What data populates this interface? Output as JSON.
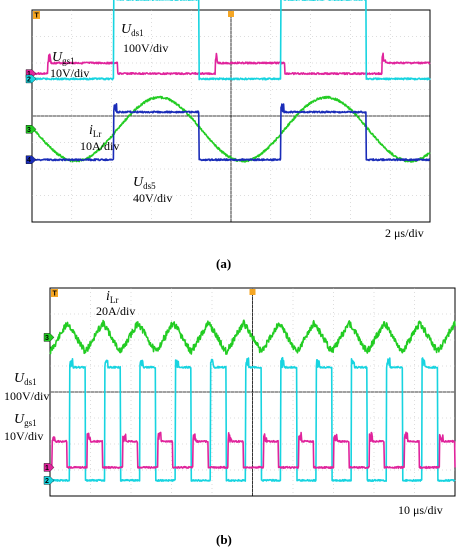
{
  "chart_data": [
    {
      "type": "line",
      "caption": "(a)",
      "time_scale": "2 μs/div",
      "divisions": {
        "x": 10,
        "y": 8
      },
      "channel_markers": [
        "T",
        "1",
        "2",
        "3",
        "4"
      ],
      "trigger_marker_color": "#f5a623",
      "series": [
        {
          "name": "U_gs1",
          "scale": "10V/div",
          "color": "#e0249c",
          "marker": "1",
          "label_main": "U",
          "label_sub": "gs1",
          "label_scale": "10V/div",
          "period_div": 4.2,
          "high_start_div": 0.4,
          "high_end_div": 2.15,
          "low_level_div": 2.4,
          "high_level_div": 2.0
        },
        {
          "name": "U_ds1",
          "scale": "100V/div",
          "color": "#17d4e0",
          "marker": "2",
          "label_main": "U",
          "label_sub": "ds1",
          "label_scale": "100V/div",
          "period_div": 4.2,
          "high_start_div": 2.05,
          "high_end_div": 4.2,
          "low_level_div": 2.6,
          "high_level_div": -0.4
        },
        {
          "name": "i_Lr",
          "scale": "10A/div",
          "color": "#22cc22",
          "marker": "3",
          "label_main": "i",
          "label_sub": "Lr",
          "label_scale": "10A/div",
          "period_div": 4.2,
          "center_div": 4.5,
          "amplitude_div": 1.2,
          "phase_div": 3.1
        },
        {
          "name": "U_ds5",
          "scale": "40V/div",
          "color": "#1a2cb8",
          "marker": "4",
          "label_main": "U",
          "label_sub": "ds5",
          "label_scale": "40V/div",
          "period_div": 4.2,
          "high_start_div": 2.05,
          "high_end_div": 4.2,
          "low_level_div": 5.65,
          "high_level_div": 3.85
        }
      ]
    },
    {
      "type": "line",
      "caption": "(b)",
      "time_scale": "10 μs/div",
      "divisions": {
        "x": 10,
        "y": 8
      },
      "channel_markers": [
        "T",
        "3",
        "1",
        "2"
      ],
      "trigger_marker_color": "#f5a623",
      "series": [
        {
          "name": "i_Lr",
          "scale": "20A/div",
          "color": "#22cc22",
          "marker": "3",
          "label_main": "i",
          "label_sub": "Lr",
          "label_scale": "20A/div",
          "period_div": 0.87,
          "center_div": 1.9,
          "amplitude_div": 0.55,
          "phase_div": 0.0
        },
        {
          "name": "U_ds1",
          "scale": "100V/div",
          "color": "#17d4e0",
          "marker": "2",
          "label_main": "U",
          "label_sub": "ds1",
          "label_scale": "100V/div",
          "period_div": 0.87,
          "high_start_div": 0.48,
          "high_end_div": 0.87,
          "low_level_div": 7.4,
          "high_level_div": 3.05
        },
        {
          "name": "U_gs1",
          "scale": "10V/div",
          "color": "#e0249c",
          "marker": "1",
          "label_main": "U",
          "label_sub": "gs1",
          "label_scale": "10V/div",
          "period_div": 0.87,
          "high_start_div": 0.05,
          "high_end_div": 0.42,
          "low_level_div": 6.9,
          "high_level_div": 5.9
        }
      ]
    }
  ]
}
